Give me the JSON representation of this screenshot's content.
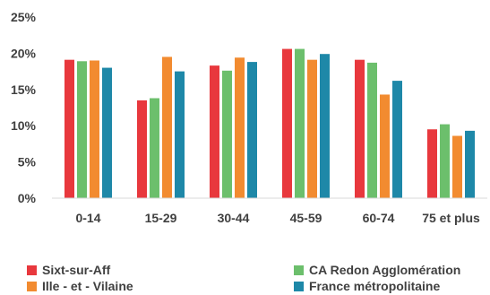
{
  "chart_data": {
    "type": "bar",
    "categories": [
      "0-14",
      "15-29",
      "30-44",
      "45-59",
      "60-74",
      "75 et plus"
    ],
    "series": [
      {
        "name": "Sixt-sur-Aff",
        "color": "#E8383D",
        "values": [
          19.1,
          13.5,
          18.3,
          20.6,
          19.1,
          9.5
        ]
      },
      {
        "name": "CA Redon Agglomération",
        "color": "#6CBF6C",
        "values": [
          18.9,
          13.8,
          17.6,
          20.6,
          18.7,
          10.2
        ]
      },
      {
        "name": "Ille - et - Vilaine",
        "color": "#F28B30",
        "values": [
          19.0,
          19.5,
          19.4,
          19.1,
          14.3,
          8.6
        ]
      },
      {
        "name": "France métropolitaine",
        "color": "#1E88A8",
        "values": [
          18.0,
          17.5,
          18.8,
          19.9,
          16.2,
          9.3
        ]
      }
    ],
    "yticks": [
      "0%",
      "5%",
      "10%",
      "15%",
      "20%",
      "25%"
    ],
    "ylim": [
      0,
      25
    ],
    "grid": false,
    "legend_position": "bottom"
  }
}
